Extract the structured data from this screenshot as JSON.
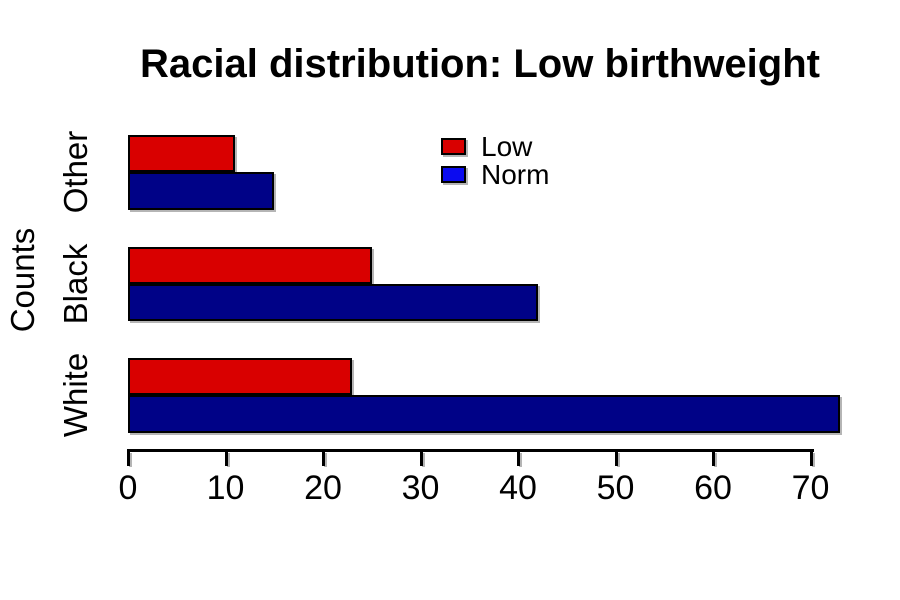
{
  "chart_data": {
    "type": "bar",
    "orientation": "horizontal",
    "title": "Racial distribution: Low birthweight",
    "ylabel": "Counts",
    "xlabel": "",
    "categories": [
      "Other",
      "Black",
      "White"
    ],
    "series": [
      {
        "name": "Low",
        "values": [
          11,
          25,
          23
        ],
        "color": "#d90000",
        "legend_color": "#d90000"
      },
      {
        "name": "Norm",
        "values": [
          15,
          42,
          73
        ],
        "color": "#000287",
        "legend_color": "#0b0bf0"
      }
    ],
    "x_ticks": [
      0,
      10,
      20,
      30,
      40,
      50,
      60,
      70
    ],
    "xlim": [
      0,
      74.5
    ],
    "grid": false,
    "legend_position": "top-center",
    "bar_border_color": "#000000",
    "background": "#ffffff"
  }
}
